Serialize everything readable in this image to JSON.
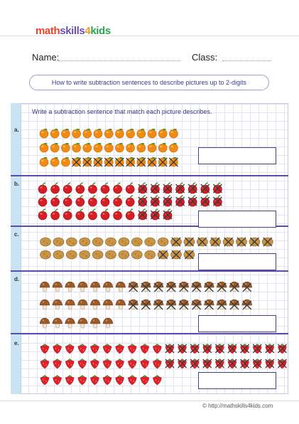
{
  "logo": {
    "part1": "math",
    "part2": "skills",
    "part3": "4",
    "part4": "kids"
  },
  "header": {
    "name_label": "Name:",
    "class_label": "Class:"
  },
  "title": "How to write subtraction sentences to describe pictures up to 2-digits",
  "instruction": "Write a subtraction sentence that match each picture describes.",
  "problems": [
    {
      "label": "a.",
      "item": "orange",
      "rows": [
        {
          "total": 13,
          "crossed": 0
        },
        {
          "total": 13,
          "crossed": 0
        },
        {
          "total": 13,
          "crossed": 10
        }
      ]
    },
    {
      "label": "b.",
      "item": "cherry",
      "rows": [
        {
          "total": 15,
          "crossed": 7
        },
        {
          "total": 15,
          "crossed": 7
        },
        {
          "total": 11,
          "crossed": 3
        }
      ]
    },
    {
      "label": "c.",
      "item": "potato",
      "rows": [
        {
          "total": 18,
          "crossed": 8
        },
        {
          "total": 12,
          "crossed": 3
        }
      ]
    },
    {
      "label": "d.",
      "item": "mushroom",
      "rows": [
        {
          "total": 17,
          "crossed": 10
        },
        {
          "total": 17,
          "crossed": 10
        },
        {
          "total": 6,
          "crossed": 0
        }
      ]
    },
    {
      "label": "e.",
      "item": "strawberry",
      "rows": [
        {
          "total": 20,
          "crossed": 10
        },
        {
          "total": 20,
          "crossed": 10
        },
        {
          "total": 10,
          "crossed": 0
        }
      ]
    }
  ],
  "footer": {
    "url": "© http://mathskills4kids.com"
  },
  "colors": {
    "accent": "#5a4fa8",
    "box_border": "#41418f",
    "cross": "#3a3a3a",
    "grid": "#e3e3f3"
  }
}
